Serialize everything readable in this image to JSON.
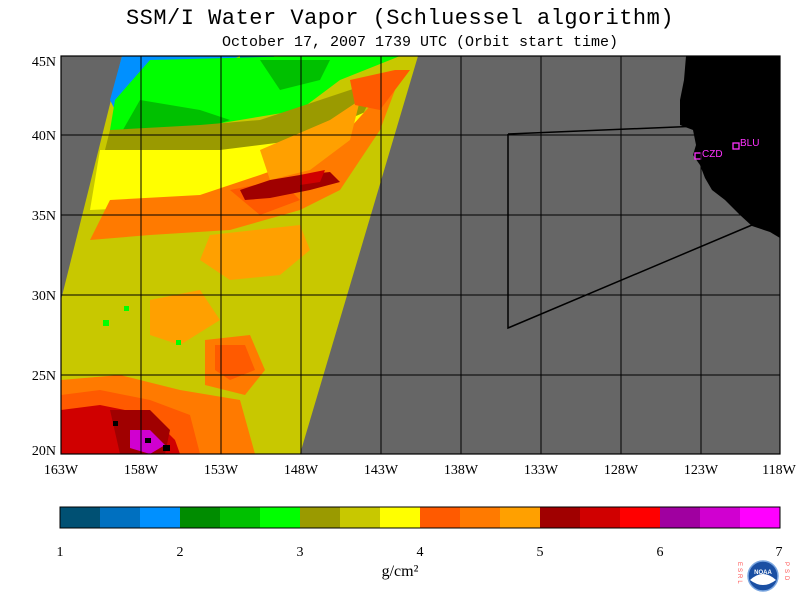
{
  "header": {
    "title": "SSM/I Water Vapor (Schluessel algorithm)",
    "subtitle": "October 17, 2007  1739 UTC  (Orbit start time)"
  },
  "map": {
    "lat_labels": [
      "45N",
      "40N",
      "35N",
      "30N",
      "25N",
      "20N"
    ],
    "lon_labels": [
      "163W",
      "158W",
      "153W",
      "148W",
      "143W",
      "138W",
      "133W",
      "128W",
      "123W",
      "118W"
    ],
    "stations": [
      {
        "id": "CZD",
        "lon": -123.0,
        "lat": 38.6
      },
      {
        "id": "BLU",
        "lon": -120.8,
        "lat": 39.3
      }
    ],
    "colors": {
      "background_gray": "#666666",
      "land": "#000000",
      "station_marker": "#ff33ff"
    }
  },
  "colorbar": {
    "tick_labels": [
      "1",
      "2",
      "3",
      "4",
      "5",
      "6",
      "7"
    ],
    "unit": "g/cm²",
    "colors": [
      "#005073",
      "#0070c0",
      "#0090ff",
      "#008c00",
      "#00c000",
      "#00ff00",
      "#9a9a00",
      "#c8c800",
      "#ffff00",
      "#ff5a00",
      "#ff7a00",
      "#ffa000",
      "#a00000",
      "#d00000",
      "#ff0000",
      "#a000a0",
      "#d000d0",
      "#ff00ff"
    ]
  },
  "logo": {
    "left_letters": "ESRL",
    "right_letters": "PSD",
    "text": "NOAA"
  }
}
